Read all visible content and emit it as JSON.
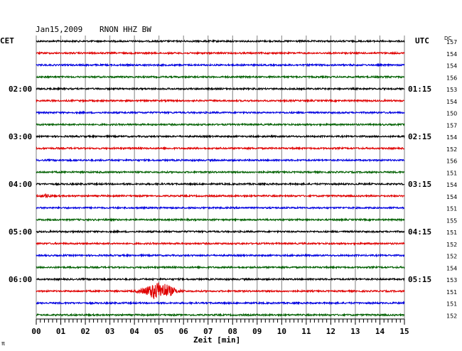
{
  "header": {
    "date": "Jan15,2009",
    "station": "RNON HHZ BW",
    "left_tz": "CET",
    "right_tz": "UTC",
    "dc_label": "DC",
    "corner_mark": "π"
  },
  "x_axis": {
    "label": "Zeit [min]",
    "ticks": [
      "00",
      "01",
      "02",
      "03",
      "04",
      "05",
      "06",
      "07",
      "08",
      "09",
      "10",
      "11",
      "12",
      "13",
      "14",
      "15"
    ]
  },
  "left_time_labels": [
    {
      "row": 0,
      "text": ""
    },
    {
      "row": 4,
      "text": "02:00"
    },
    {
      "row": 8,
      "text": "03:00"
    },
    {
      "row": 12,
      "text": "04:00"
    },
    {
      "row": 16,
      "text": "05:00"
    },
    {
      "row": 20,
      "text": "06:00"
    }
  ],
  "right_time_labels": [
    {
      "row": 4,
      "text": "01:15"
    },
    {
      "row": 8,
      "text": "02:15"
    },
    {
      "row": 12,
      "text": "03:15"
    },
    {
      "row": 16,
      "text": "04:15"
    },
    {
      "row": 20,
      "text": "05:15"
    }
  ],
  "trace_colors": [
    "#000000",
    "#e00000",
    "#0000e0",
    "#006000"
  ],
  "chart_data": {
    "type": "line",
    "title": "Jan15,2009  RNON HHZ BW",
    "xlabel": "Zeit [min]",
    "xlim": [
      0,
      15
    ],
    "grid": true,
    "rows_per_hour": 4,
    "minutes_per_row": 15,
    "dc_offsets": [
      157,
      154,
      154,
      156,
      153,
      154,
      150,
      157,
      154,
      152,
      156,
      151,
      154,
      154,
      151,
      155,
      151,
      152,
      152,
      154,
      153,
      151,
      151,
      152
    ],
    "events": [
      {
        "row": 13,
        "center_min": 0.4,
        "amplitude": 2.0,
        "duration_min": 0.5
      },
      {
        "row": 21,
        "center_min": 5.0,
        "amplitude": 12.0,
        "duration_min": 1.6
      }
    ]
  }
}
